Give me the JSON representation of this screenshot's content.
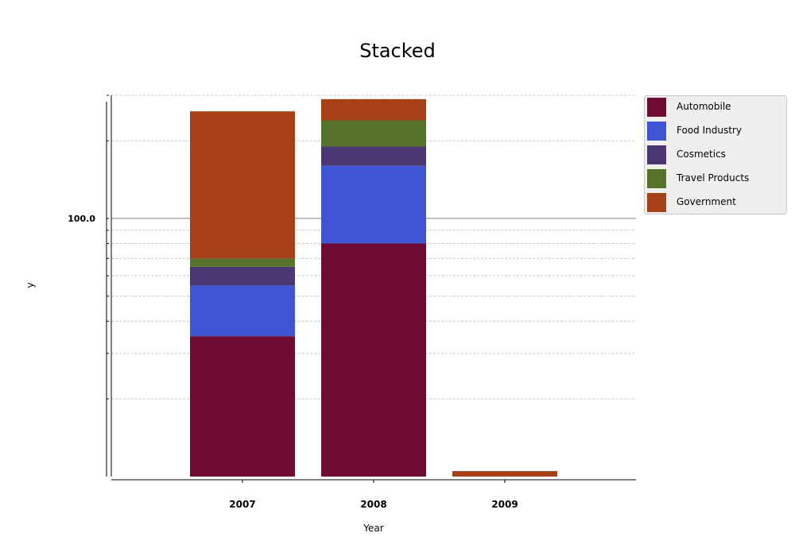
{
  "chart_data": {
    "type": "bar",
    "stacked": true,
    "title": "Stacked",
    "xlabel": "Year",
    "ylabel": "y",
    "categories": [
      "2007",
      "2008",
      "2009"
    ],
    "y_scale": "log",
    "y_tick_labels": [
      "100.0"
    ],
    "grid": true,
    "legend_position": "right",
    "series": [
      {
        "name": "Automobile",
        "color": "#6d0b33",
        "values": [
          35,
          80,
          5
        ]
      },
      {
        "name": "Food Industry",
        "color": "#3e55d6",
        "values": [
          20,
          80,
          1.5
        ]
      },
      {
        "name": "Cosmetics",
        "color": "#4a3672",
        "values": [
          10,
          30,
          1.5
        ]
      },
      {
        "name": "Travel Products",
        "color": "#55732a",
        "values": [
          5,
          50,
          1
        ]
      },
      {
        "name": "Government",
        "color": "#a73f17",
        "values": [
          190,
          50,
          1.5
        ]
      }
    ]
  }
}
